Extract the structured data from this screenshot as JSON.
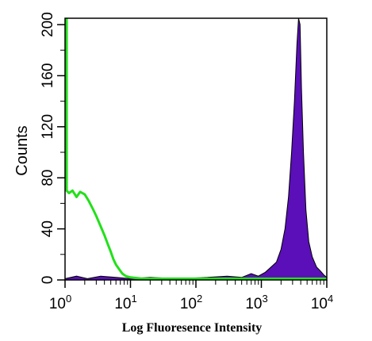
{
  "chart_data": {
    "type": "area",
    "title": "",
    "xlabel": "Log Fluoresence Intensity",
    "ylabel": "Counts",
    "xscale": "log",
    "xlim": [
      1,
      10000
    ],
    "ylim": [
      0,
      205
    ],
    "x_ticks": [
      {
        "base": "10",
        "exp": "0",
        "value": 1
      },
      {
        "base": "10",
        "exp": "1",
        "value": 10
      },
      {
        "base": "10",
        "exp": "2",
        "value": 100
      },
      {
        "base": "10",
        "exp": "3",
        "value": 1000
      },
      {
        "base": "10",
        "exp": "4",
        "value": 10000
      }
    ],
    "y_ticks": [
      "0",
      "40",
      "80",
      "120",
      "160",
      "200"
    ],
    "grid": false,
    "legend": "none",
    "series": [
      {
        "style": "filled",
        "color": "#5a0fb8",
        "points": [
          [
            1.0,
            1
          ],
          [
            1.5,
            3
          ],
          [
            2.2,
            1
          ],
          [
            3.5,
            3
          ],
          [
            6,
            2
          ],
          [
            10,
            1
          ],
          [
            20,
            2
          ],
          [
            50,
            1
          ],
          [
            150,
            2
          ],
          [
            300,
            3
          ],
          [
            500,
            2
          ],
          [
            700,
            5
          ],
          [
            900,
            3
          ],
          [
            1150,
            6
          ],
          [
            1400,
            10
          ],
          [
            1700,
            14
          ],
          [
            2000,
            24
          ],
          [
            2300,
            40
          ],
          [
            2600,
            65
          ],
          [
            2900,
            100
          ],
          [
            3200,
            140
          ],
          [
            3500,
            185
          ],
          [
            3700,
            205
          ],
          [
            3900,
            200
          ],
          [
            4100,
            150
          ],
          [
            4400,
            100
          ],
          [
            4800,
            55
          ],
          [
            5300,
            30
          ],
          [
            6000,
            18
          ],
          [
            7000,
            10
          ],
          [
            8000,
            7
          ],
          [
            9000,
            4
          ],
          [
            10000,
            2
          ]
        ]
      },
      {
        "style": "line",
        "color": "#22e01a",
        "points": [
          [
            1.0,
            205
          ],
          [
            1.0,
            70
          ],
          [
            1.15,
            68
          ],
          [
            1.3,
            70
          ],
          [
            1.5,
            65
          ],
          [
            1.7,
            69
          ],
          [
            2.0,
            67
          ],
          [
            2.3,
            62
          ],
          [
            2.7,
            55
          ],
          [
            3.0,
            50
          ],
          [
            3.5,
            42
          ],
          [
            4.0,
            35
          ],
          [
            4.5,
            28
          ],
          [
            5.0,
            22
          ],
          [
            5.5,
            16
          ],
          [
            6.0,
            12
          ],
          [
            6.8,
            8
          ],
          [
            7.5,
            5
          ],
          [
            8.5,
            3
          ],
          [
            10,
            2
          ],
          [
            15,
            1
          ],
          [
            30,
            1
          ],
          [
            100,
            1
          ],
          [
            1000,
            1
          ],
          [
            10000,
            1
          ]
        ]
      }
    ],
    "colors": {
      "filled_fill": "#5a0fb8",
      "filled_edge": "#000000",
      "line": "#22e01a",
      "frame": "#000000"
    }
  }
}
